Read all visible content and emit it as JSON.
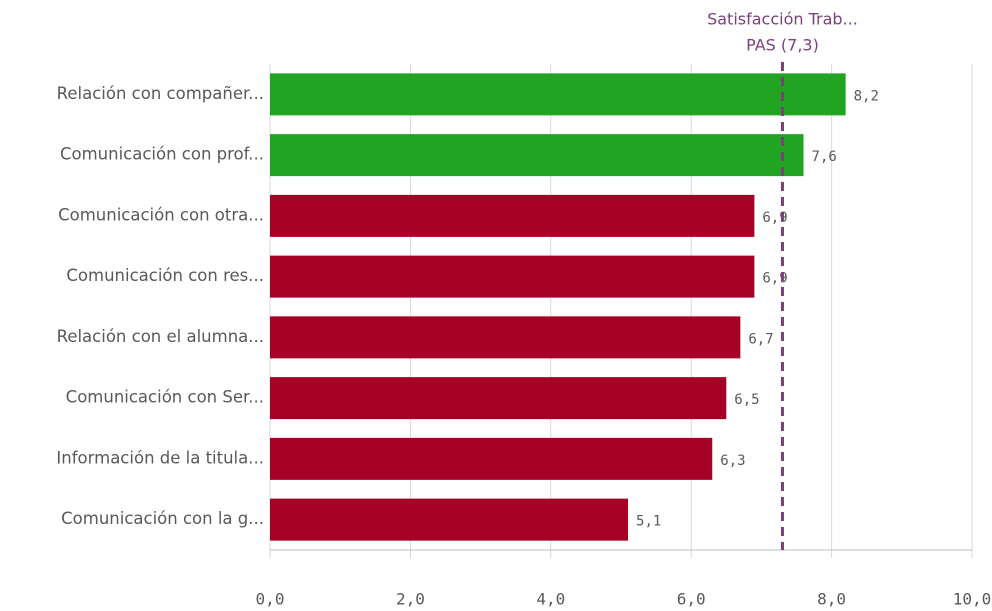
{
  "chart_data": {
    "type": "hbar",
    "categories": [
      "Relación con compañer...",
      "Comunicación con prof...",
      "Comunicación con otra...",
      "Comunicación con res...",
      "Relación con el alumna...",
      "Comunicación con Ser...",
      "Información de la titula...",
      "Comunicación con la g..."
    ],
    "values": [
      8.2,
      7.6,
      6.9,
      6.9,
      6.7,
      6.5,
      6.3,
      5.1
    ],
    "value_labels": [
      "8,2",
      "7,6",
      "6,9",
      "6,9",
      "6,7",
      "6,5",
      "6,3",
      "5,1"
    ],
    "colors": [
      "#21a421",
      "#21a421",
      "#a50026",
      "#a50026",
      "#a50026",
      "#a50026",
      "#a50026",
      "#a50026"
    ],
    "xlim": [
      0,
      10
    ],
    "xticks": [
      {
        "value": 0,
        "label": "0,0"
      },
      {
        "value": 2,
        "label": "2,0"
      },
      {
        "value": 4,
        "label": "4,0"
      },
      {
        "value": 6,
        "label": "6,0"
      },
      {
        "value": 8,
        "label": "8,0"
      },
      {
        "value": 10,
        "label": "10,0"
      }
    ],
    "grid": true,
    "reference_line": {
      "value": 7.3,
      "color": "#7b3f7b",
      "label_lines": [
        "Satisfacción Trab...",
        "PAS (7,3)"
      ]
    }
  }
}
